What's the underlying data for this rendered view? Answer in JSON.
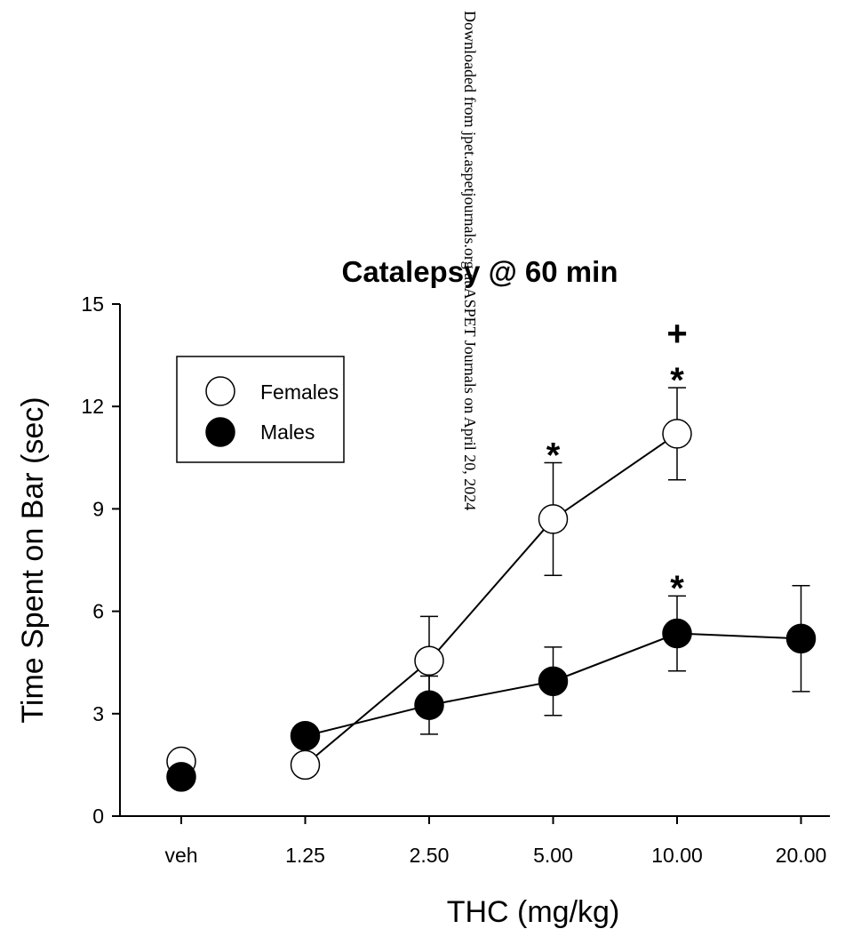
{
  "watermark": "Downloaded from jpet.aspetjournals.org at ASPET Journals on April 20, 2024",
  "chart_data": {
    "type": "scatter",
    "title": "Catalepsy @ 60 min",
    "xlabel": "THC (mg/kg)",
    "ylabel": "Time Spent on Bar (sec)",
    "categories": [
      "veh",
      "1.25",
      "2.50",
      "5.00",
      "10.00",
      "20.00"
    ],
    "ylim": [
      0,
      15
    ],
    "yticks": [
      0,
      3,
      6,
      9,
      12,
      15
    ],
    "legend_position": "top-left",
    "series": [
      {
        "name": "Females",
        "fill": "#ffffff",
        "stroke": "#000000",
        "points": [
          {
            "category": "veh",
            "y": 1.6,
            "err": null,
            "connected": false
          },
          {
            "category": "1.25",
            "y": 1.5,
            "err": null,
            "connected": true
          },
          {
            "category": "2.50",
            "y": 4.55,
            "err": 1.3,
            "connected": true
          },
          {
            "category": "5.00",
            "y": 8.7,
            "err": 1.65,
            "connected": true
          },
          {
            "category": "10.00",
            "y": 11.2,
            "err": 1.35,
            "connected": true
          }
        ]
      },
      {
        "name": "Males",
        "fill": "#000000",
        "stroke": "#000000",
        "points": [
          {
            "category": "veh",
            "y": 1.15,
            "err": null,
            "connected": false
          },
          {
            "category": "1.25",
            "y": 2.35,
            "err": null,
            "connected": true
          },
          {
            "category": "2.50",
            "y": 3.25,
            "err": 0.85,
            "connected": true
          },
          {
            "category": "5.00",
            "y": 3.95,
            "err": 1.0,
            "connected": true
          },
          {
            "category": "10.00",
            "y": 5.35,
            "err": 1.1,
            "connected": true
          },
          {
            "category": "20.00",
            "y": 5.2,
            "err": 1.55,
            "connected": true
          }
        ]
      }
    ],
    "annotations": [
      {
        "text": "*",
        "category": "5.00",
        "y": 10.8
      },
      {
        "text": "*",
        "category": "10.00",
        "y": 13.0
      },
      {
        "text": "+",
        "category": "10.00",
        "y": 14.1
      },
      {
        "text": "*",
        "category": "10.00",
        "y": 6.9
      }
    ]
  }
}
